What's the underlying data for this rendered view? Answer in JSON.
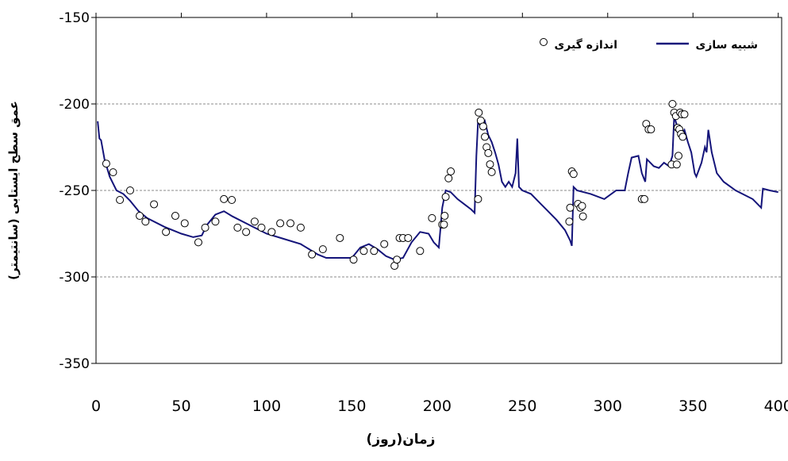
{
  "chart_data": {
    "type": "line",
    "x_label": "زمان(روز)",
    "y_label": "عمق سطح ایستابی (سانتیمتر)",
    "xlim": [
      0,
      402
    ],
    "ylim": [
      -350,
      -150
    ],
    "xticks": [
      0,
      50,
      100,
      150,
      200,
      250,
      300,
      350,
      400
    ],
    "yticks": [
      -350,
      -300,
      -250,
      -200,
      -150
    ],
    "grid": true,
    "legend": "top-right",
    "series": [
      {
        "name": "شبیه سازی",
        "type": "line",
        "color": "#14147a",
        "x": [
          1,
          2,
          3,
          5,
          8,
          12,
          16,
          20,
          25,
          30,
          40,
          50,
          57,
          62,
          65,
          70,
          75,
          80,
          90,
          100,
          110,
          120,
          125,
          130,
          135,
          150,
          155,
          160,
          165,
          170,
          175,
          180,
          185,
          190,
          195,
          198,
          201,
          203,
          205,
          208,
          212,
          216,
          220,
          222,
          223,
          224,
          226,
          228,
          230,
          232,
          234,
          236,
          238,
          240,
          242,
          244,
          246,
          247,
          248,
          250,
          255,
          260,
          265,
          270,
          275,
          278,
          279,
          280,
          282,
          290,
          298,
          305,
          310,
          312,
          314,
          318,
          320,
          322,
          323,
          325,
          327,
          330,
          333,
          336,
          338,
          339,
          341,
          343,
          345,
          347,
          349,
          351,
          352,
          355,
          357,
          358,
          359,
          361,
          364,
          368,
          375,
          385,
          390,
          391,
          395,
          400
        ],
        "values": [
          -210,
          -220,
          -221,
          -232,
          -242,
          -250,
          -252,
          -256,
          -262,
          -266,
          -271,
          -275,
          -277,
          -276,
          -270,
          -264,
          -262,
          -265,
          -270,
          -275,
          -278,
          -281,
          -284,
          -287,
          -289,
          -289,
          -283,
          -281,
          -284,
          -288,
          -290,
          -289,
          -280,
          -274,
          -275,
          -280,
          -283,
          -260,
          -250,
          -251,
          -255,
          -258,
          -261,
          -263,
          -230,
          -210,
          -214,
          -210,
          -218,
          -222,
          -228,
          -235,
          -245,
          -248,
          -245,
          -248,
          -240,
          -220,
          -248,
          -250,
          -252,
          -257,
          -262,
          -267,
          -273,
          -279,
          -282,
          -248,
          -250,
          -252,
          -255,
          -250,
          -250,
          -240,
          -231,
          -230,
          -240,
          -245,
          -232,
          -234,
          -236,
          -237,
          -234,
          -236,
          -230,
          -207,
          -214,
          -218,
          -215,
          -222,
          -228,
          -240,
          -242,
          -234,
          -225,
          -228,
          -215,
          -228,
          -240,
          -245,
          -250,
          -255,
          -260,
          -249,
          -250,
          -251
        ]
      },
      {
        "name": "اندازه گیری",
        "type": "scatter",
        "color": "#000000",
        "x": [
          6,
          10,
          14,
          20,
          25.6,
          29,
          34,
          41,
          46.5,
          52,
          60,
          64,
          70,
          75,
          79.6,
          83,
          88,
          93,
          97,
          103,
          108,
          114,
          120,
          126.6,
          133,
          143,
          151,
          157,
          163,
          169,
          175,
          176.4,
          178,
          180,
          183,
          190,
          197,
          203,
          204,
          204.4,
          205,
          206.7,
          208,
          224,
          224.4,
          225.6,
          227,
          228,
          229,
          230,
          231,
          232,
          277.5,
          278,
          279,
          280,
          282.6,
          284,
          285,
          285.5,
          320,
          321.5,
          322.6,
          324,
          325.4,
          338,
          339,
          340,
          341,
          342,
          343,
          344,
          337.5,
          340.5,
          341.5,
          342.5,
          343.5,
          345
        ],
        "values": [
          -234.5,
          -239.5,
          -255.5,
          -250,
          -264.7,
          -268,
          -258,
          -274,
          -264.7,
          -269,
          -280,
          -271.5,
          -268,
          -255,
          -255.5,
          -271.5,
          -274,
          -268,
          -271.5,
          -274,
          -269,
          -269,
          -271.5,
          -287,
          -284,
          -277.5,
          -290,
          -285,
          -285,
          -281,
          -293.6,
          -290,
          -277.5,
          -277.5,
          -277.5,
          -285,
          -266,
          -269.7,
          -269.7,
          -264.7,
          -253.7,
          -243,
          -239,
          -255,
          -205,
          -209.6,
          -213,
          -219,
          -225,
          -228.4,
          -234.9,
          -239.4,
          -268,
          -260,
          -239,
          -240.5,
          -257.8,
          -260,
          -259,
          -265,
          -255,
          -255,
          -211.5,
          -214.7,
          -214.7,
          -200,
          -205,
          -207,
          -213.8,
          -214.7,
          -217.4,
          -219,
          -235,
          -235,
          -230,
          -205,
          -206,
          -206
        ]
      }
    ]
  }
}
